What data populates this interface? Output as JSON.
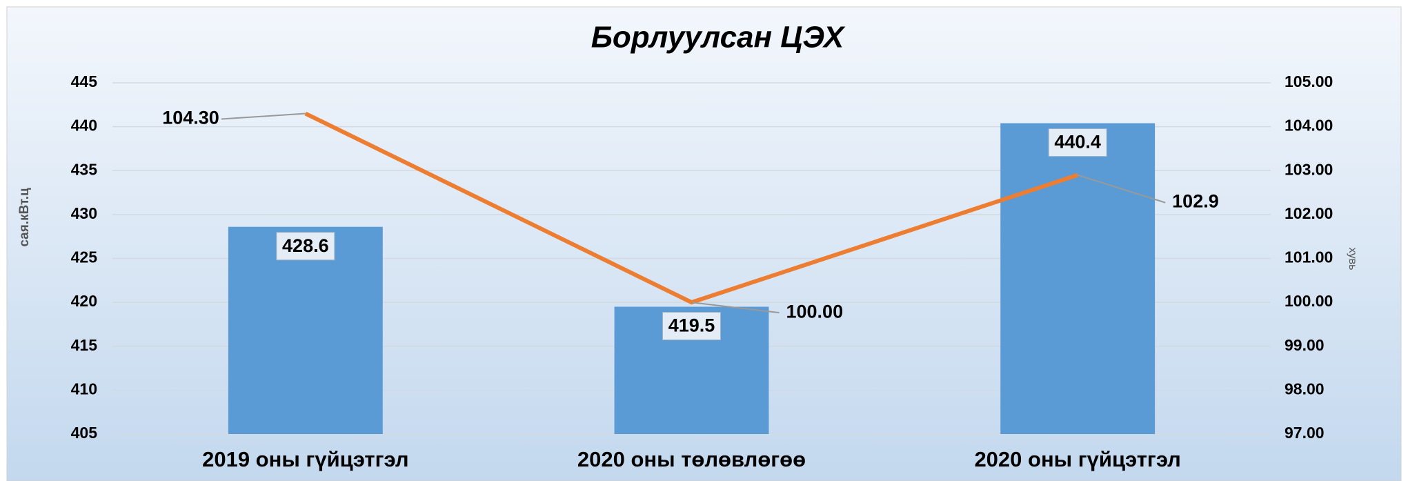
{
  "chart_data": {
    "type": "bar",
    "title": "Борлуулсан ЦЭХ",
    "categories": [
      "2019 оны гүйцэтгэл",
      "2020 оны төлөвлөгөө",
      "2020 оны гүйцэтгэл"
    ],
    "series": [
      {
        "name": "сая.кВт.ц",
        "type": "bar",
        "color": "#5b9bd5",
        "values": [
          428.6,
          419.5,
          440.4
        ]
      },
      {
        "name": "хувь",
        "type": "line",
        "axis": "y2",
        "color": "#ed7d31",
        "values": [
          104.3,
          100,
          102.9
        ],
        "value_labels": [
          "104.30",
          "100.00",
          "102.9"
        ]
      }
    ],
    "ylabel": "сая.кВт.ц",
    "y2label": "хувь",
    "ylim": [
      405,
      445
    ],
    "yticks": [
      405,
      410,
      415,
      420,
      425,
      430,
      435,
      440,
      445
    ],
    "y2lim": [
      97,
      105
    ],
    "y2ticks": [
      {
        "value": 97,
        "label": "97.00"
      },
      {
        "value": 98,
        "label": "98.00"
      },
      {
        "value": 99,
        "label": "99.00"
      },
      {
        "value": 100,
        "label": "100.00"
      },
      {
        "value": 101,
        "label": "101.00"
      },
      {
        "value": 102,
        "label": "102.00"
      },
      {
        "value": 103,
        "label": "103.00"
      },
      {
        "value": 104,
        "label": "104.00"
      },
      {
        "value": 105,
        "label": "105.00"
      }
    ],
    "grid": true
  }
}
